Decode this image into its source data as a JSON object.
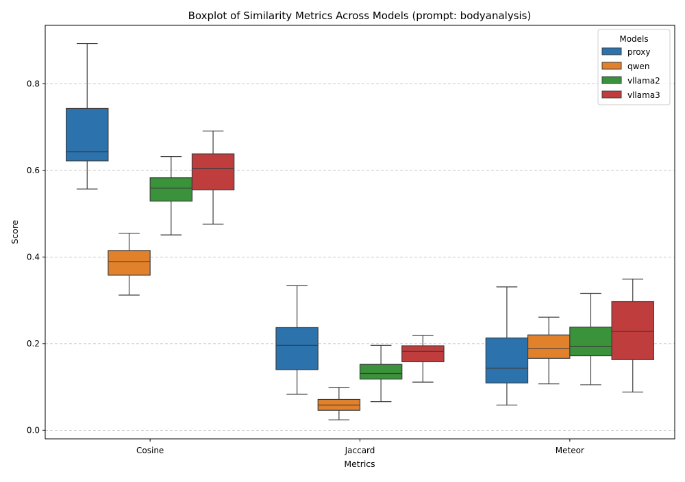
{
  "chart_data": {
    "type": "boxplot",
    "title": "Boxplot of Similarity Metrics Across Models (prompt: bodyanalysis)",
    "xlabel": "Metrics",
    "ylabel": "Score",
    "categories": [
      "Cosine",
      "Jaccard",
      "Meteor"
    ],
    "ylim": [
      -0.02,
      0.935
    ],
    "yticks": [
      "0.0",
      "0.2",
      "0.4",
      "0.6",
      "0.8"
    ],
    "grid": "y-dashed",
    "legend": {
      "title": "Models",
      "placement": "top-right"
    },
    "series": [
      {
        "name": "proxy",
        "color": "#2c72ad",
        "boxes": [
          {
            "min": 0.557,
            "q1": 0.622,
            "median": 0.643,
            "q3": 0.743,
            "max": 0.893
          },
          {
            "min": 0.083,
            "q1": 0.14,
            "median": 0.196,
            "q3": 0.237,
            "max": 0.334
          },
          {
            "min": 0.058,
            "q1": 0.109,
            "median": 0.143,
            "q3": 0.213,
            "max": 0.331
          }
        ]
      },
      {
        "name": "qwen",
        "color": "#e2812b",
        "boxes": [
          {
            "min": 0.312,
            "q1": 0.358,
            "median": 0.389,
            "q3": 0.415,
            "max": 0.455
          },
          {
            "min": 0.024,
            "q1": 0.046,
            "median": 0.058,
            "q3": 0.071,
            "max": 0.099
          },
          {
            "min": 0.107,
            "q1": 0.166,
            "median": 0.188,
            "q3": 0.22,
            "max": 0.261
          }
        ]
      },
      {
        "name": "vllama2",
        "color": "#3a923a",
        "boxes": [
          {
            "min": 0.451,
            "q1": 0.529,
            "median": 0.559,
            "q3": 0.583,
            "max": 0.632
          },
          {
            "min": 0.066,
            "q1": 0.118,
            "median": 0.131,
            "q3": 0.152,
            "max": 0.196
          },
          {
            "min": 0.105,
            "q1": 0.172,
            "median": 0.193,
            "q3": 0.238,
            "max": 0.316
          }
        ]
      },
      {
        "name": "vllama3",
        "color": "#c03d3e",
        "boxes": [
          {
            "min": 0.476,
            "q1": 0.555,
            "median": 0.604,
            "q3": 0.638,
            "max": 0.691
          },
          {
            "min": 0.111,
            "q1": 0.158,
            "median": 0.182,
            "q3": 0.195,
            "max": 0.219
          },
          {
            "min": 0.088,
            "q1": 0.163,
            "median": 0.228,
            "q3": 0.297,
            "max": 0.349
          }
        ]
      }
    ]
  }
}
